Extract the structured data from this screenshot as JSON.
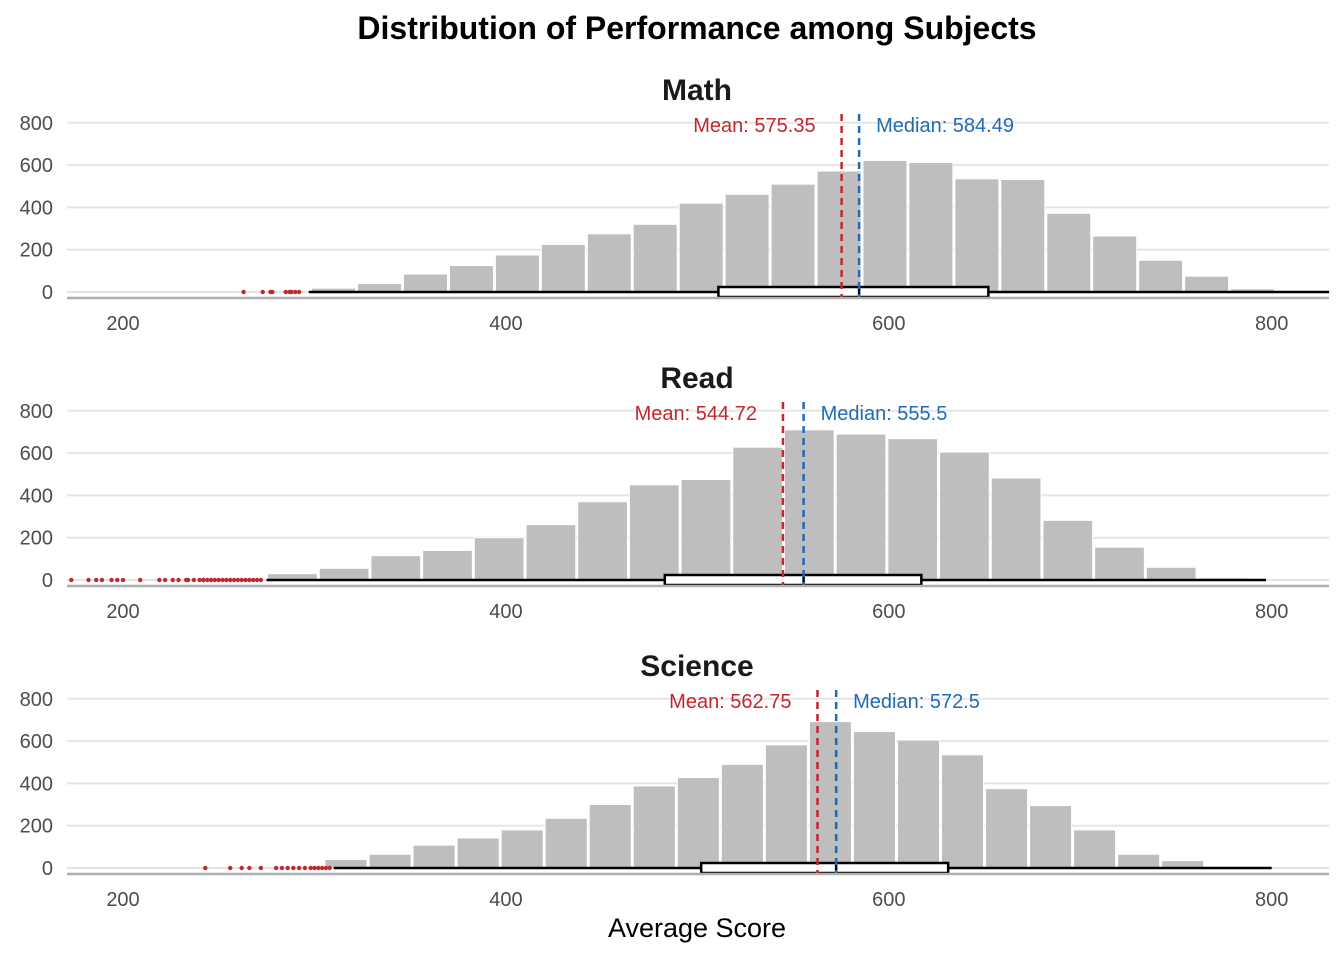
{
  "title": "Distribution of Performance among Subjects",
  "xlabel": "Average Score",
  "colors": {
    "bar": "#bebebe",
    "mean": "#c0282d",
    "median": "#1f6bb5",
    "outlier": "#c0282d",
    "grid": "#e5e5e5",
    "axis_line": "#b0b0b0",
    "tick_text": "#4d4d4d"
  },
  "chart_data": [
    {
      "type": "bar",
      "panel": "Math",
      "xlim": [
        170,
        830
      ],
      "ylim": [
        0,
        800
      ],
      "xticks": [
        200,
        400,
        600,
        800
      ],
      "yticks": [
        0,
        200,
        400,
        600,
        800
      ],
      "bins": [
        {
          "x0": 298,
          "x1": 322,
          "count": 18
        },
        {
          "x0": 322,
          "x1": 346,
          "count": 40
        },
        {
          "x0": 346,
          "x1": 370,
          "count": 85
        },
        {
          "x0": 370,
          "x1": 394,
          "count": 125
        },
        {
          "x0": 394,
          "x1": 418,
          "count": 175
        },
        {
          "x0": 418,
          "x1": 442,
          "count": 225
        },
        {
          "x0": 442,
          "x1": 466,
          "count": 275
        },
        {
          "x0": 466,
          "x1": 490,
          "count": 320
        },
        {
          "x0": 490,
          "x1": 514,
          "count": 420
        },
        {
          "x0": 514,
          "x1": 538,
          "count": 462
        },
        {
          "x0": 538,
          "x1": 562,
          "count": 510
        },
        {
          "x0": 562,
          "x1": 586,
          "count": 572
        },
        {
          "x0": 586,
          "x1": 610,
          "count": 622
        },
        {
          "x0": 610,
          "x1": 634,
          "count": 612
        },
        {
          "x0": 634,
          "x1": 658,
          "count": 535
        },
        {
          "x0": 658,
          "x1": 682,
          "count": 532
        },
        {
          "x0": 682,
          "x1": 706,
          "count": 372
        },
        {
          "x0": 706,
          "x1": 730,
          "count": 265
        },
        {
          "x0": 730,
          "x1": 754,
          "count": 150
        },
        {
          "x0": 754,
          "x1": 778,
          "count": 75
        },
        {
          "x0": 778,
          "x1": 802,
          "count": 15
        }
      ],
      "boxplot": {
        "whisker_low": 297,
        "q1": 511,
        "median": 584.49,
        "q3": 652,
        "whisker_high": 830
      },
      "outliers": [
        263,
        273,
        277,
        278,
        285,
        287,
        288,
        290,
        292
      ],
      "mean": 575.35,
      "median": 584.49,
      "mean_label": "Mean: 575.35",
      "median_label": "Median: 584.49"
    },
    {
      "type": "bar",
      "panel": "Read",
      "xlim": [
        170,
        830
      ],
      "ylim": [
        0,
        800
      ],
      "xticks": [
        200,
        400,
        600,
        800
      ],
      "yticks": [
        0,
        200,
        400,
        600,
        800
      ],
      "bins": [
        {
          "x0": 275,
          "x1": 302,
          "count": 30
        },
        {
          "x0": 302,
          "x1": 329,
          "count": 55
        },
        {
          "x0": 329,
          "x1": 356,
          "count": 115
        },
        {
          "x0": 356,
          "x1": 383,
          "count": 140
        },
        {
          "x0": 383,
          "x1": 410,
          "count": 200
        },
        {
          "x0": 410,
          "x1": 437,
          "count": 262
        },
        {
          "x0": 437,
          "x1": 464,
          "count": 370
        },
        {
          "x0": 464,
          "x1": 491,
          "count": 450
        },
        {
          "x0": 491,
          "x1": 518,
          "count": 475
        },
        {
          "x0": 518,
          "x1": 545,
          "count": 628
        },
        {
          "x0": 545,
          "x1": 572,
          "count": 710
        },
        {
          "x0": 572,
          "x1": 599,
          "count": 690
        },
        {
          "x0": 599,
          "x1": 626,
          "count": 668
        },
        {
          "x0": 626,
          "x1": 653,
          "count": 605
        },
        {
          "x0": 653,
          "x1": 680,
          "count": 482
        },
        {
          "x0": 680,
          "x1": 707,
          "count": 282
        },
        {
          "x0": 707,
          "x1": 734,
          "count": 155
        },
        {
          "x0": 734,
          "x1": 761,
          "count": 60
        },
        {
          "x0": 761,
          "x1": 788,
          "count": 10
        }
      ],
      "boxplot": {
        "whisker_low": 275,
        "q1": 483,
        "median": 555.5,
        "q3": 617,
        "whisker_high": 797
      },
      "outliers": [
        173,
        182,
        186,
        189,
        194,
        197,
        200,
        209,
        219,
        222,
        226,
        229,
        233,
        234,
        237,
        240,
        242,
        244,
        246,
        248,
        250,
        252,
        254,
        256,
        258,
        260,
        262,
        264,
        266,
        268,
        270,
        272
      ],
      "mean": 544.72,
      "median": 555.5,
      "mean_label": "Mean: 544.72",
      "median_label": "Median: 555.5"
    },
    {
      "type": "bar",
      "panel": "Science",
      "xlim": [
        170,
        830
      ],
      "ylim": [
        0,
        800
      ],
      "xticks": [
        200,
        400,
        600,
        800
      ],
      "yticks": [
        0,
        200,
        400,
        600,
        800
      ],
      "bins": [
        {
          "x0": 305,
          "x1": 328,
          "count": 40
        },
        {
          "x0": 328,
          "x1": 351,
          "count": 65
        },
        {
          "x0": 351,
          "x1": 374,
          "count": 108
        },
        {
          "x0": 374,
          "x1": 397,
          "count": 142
        },
        {
          "x0": 397,
          "x1": 420,
          "count": 180
        },
        {
          "x0": 420,
          "x1": 443,
          "count": 235
        },
        {
          "x0": 443,
          "x1": 466,
          "count": 300
        },
        {
          "x0": 466,
          "x1": 489,
          "count": 388
        },
        {
          "x0": 489,
          "x1": 512,
          "count": 428
        },
        {
          "x0": 512,
          "x1": 535,
          "count": 490
        },
        {
          "x0": 535,
          "x1": 558,
          "count": 582
        },
        {
          "x0": 558,
          "x1": 581,
          "count": 692
        },
        {
          "x0": 581,
          "x1": 604,
          "count": 645
        },
        {
          "x0": 604,
          "x1": 627,
          "count": 605
        },
        {
          "x0": 627,
          "x1": 650,
          "count": 535
        },
        {
          "x0": 650,
          "x1": 673,
          "count": 375
        },
        {
          "x0": 673,
          "x1": 696,
          "count": 295
        },
        {
          "x0": 696,
          "x1": 719,
          "count": 180
        },
        {
          "x0": 719,
          "x1": 742,
          "count": 65
        },
        {
          "x0": 742,
          "x1": 765,
          "count": 35
        }
      ],
      "boxplot": {
        "whisker_low": 310,
        "q1": 502,
        "median": 572.5,
        "q3": 631,
        "whisker_high": 800
      },
      "outliers": [
        243,
        256,
        262,
        266,
        272,
        280,
        283,
        286,
        289,
        292,
        295,
        298,
        300,
        302,
        304,
        306,
        308
      ],
      "mean": 562.75,
      "median": 572.5,
      "mean_label": "Mean: 562.75",
      "median_label": "Median: 572.5"
    }
  ]
}
